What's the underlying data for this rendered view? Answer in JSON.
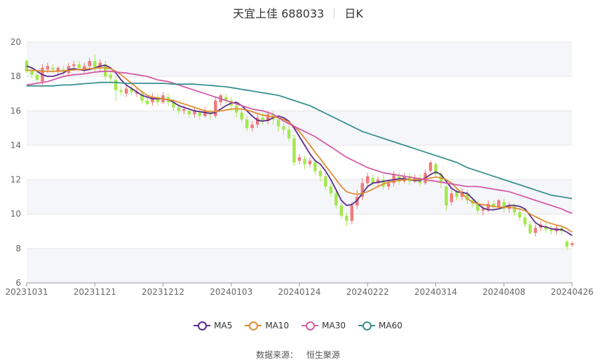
{
  "title": {
    "name": "天宜上佳 688033",
    "period": "日K"
  },
  "source": {
    "label": "数据来源：",
    "value": "恒生聚源"
  },
  "colors": {
    "up": "#ef7b7b",
    "down": "#a4e84c",
    "band": "#f5f6fa",
    "grid": "#e6e6e6"
  },
  "chart_data": {
    "type": "candlestick",
    "y_ticks": [
      "6",
      "8",
      "10",
      "12",
      "14",
      "16",
      "18",
      "20"
    ],
    "ylim": [
      6,
      20
    ],
    "x_ticks": [
      "20231031",
      "20231121",
      "20231212",
      "20240103",
      "20240124",
      "20240222",
      "20240314",
      "20240408",
      "20240426"
    ],
    "series": [
      {
        "name": "MA5",
        "color": "#5b2c8c",
        "values": [
          18.6,
          18.5,
          18.3,
          18.1,
          18.0,
          18.0,
          18.1,
          18.2,
          18.4,
          18.45,
          18.4,
          18.35,
          18.4,
          18.5,
          18.6,
          18.65,
          18.5,
          18.2,
          17.8,
          17.5,
          17.3,
          17.1,
          16.9,
          16.8,
          16.7,
          16.7,
          16.7,
          16.65,
          16.5,
          16.3,
          16.2,
          16.1,
          16.0,
          15.95,
          15.9,
          15.85,
          15.9,
          16.1,
          16.3,
          16.45,
          16.5,
          16.3,
          16.0,
          15.7,
          15.45,
          15.4,
          15.45,
          15.6,
          15.7,
          15.6,
          15.4,
          15.0,
          14.5,
          14.0,
          13.5,
          13.1,
          12.9,
          12.5,
          12.0,
          11.4,
          10.8,
          10.5,
          10.55,
          10.8,
          11.2,
          11.6,
          11.8,
          11.85,
          11.9,
          11.95,
          12.0,
          12.05,
          12.05,
          12.0,
          11.95,
          11.95,
          12.1,
          12.3,
          12.45,
          12.3,
          11.9,
          11.5,
          11.3,
          11.25,
          11.2,
          10.9,
          10.6,
          10.35,
          10.25,
          10.25,
          10.3,
          10.4,
          10.5,
          10.5,
          10.45,
          10.3,
          9.9,
          9.5,
          9.3,
          9.25,
          9.15,
          9.1,
          9.1,
          8.95,
          8.75
        ]
      },
      {
        "name": "MA10",
        "color": "#e08d33",
        "values": [
          18.35,
          18.35,
          18.33,
          18.3,
          18.3,
          18.3,
          18.3,
          18.32,
          18.35,
          18.38,
          18.4,
          18.42,
          18.45,
          18.48,
          18.5,
          18.5,
          18.45,
          18.3,
          18.1,
          17.85,
          17.6,
          17.35,
          17.1,
          16.9,
          16.8,
          16.75,
          16.7,
          16.65,
          16.6,
          16.5,
          16.4,
          16.3,
          16.2,
          16.1,
          16.0,
          15.95,
          15.95,
          16.0,
          16.05,
          16.1,
          16.12,
          16.1,
          16.05,
          15.95,
          15.85,
          15.75,
          15.7,
          15.65,
          15.6,
          15.5,
          15.35,
          15.1,
          14.8,
          14.4,
          14.0,
          13.6,
          13.2,
          12.8,
          12.4,
          12.0,
          11.6,
          11.3,
          11.2,
          11.15,
          11.2,
          11.3,
          11.45,
          11.6,
          11.75,
          11.85,
          11.9,
          11.95,
          12.0,
          12.0,
          12.0,
          12.0,
          12.05,
          12.1,
          12.15,
          12.1,
          12.0,
          11.8,
          11.5,
          11.2,
          10.9,
          10.7,
          10.6,
          10.55,
          10.5,
          10.45,
          10.4,
          10.4,
          10.4,
          10.35,
          10.3,
          10.2,
          10.0,
          9.85,
          9.7,
          9.55,
          9.45,
          9.35,
          9.3,
          9.15,
          8.95
        ]
      },
      {
        "name": "MA30",
        "color": "#d45aa8",
        "values": [
          17.5,
          17.55,
          17.6,
          17.65,
          17.7,
          17.8,
          17.9,
          18.0,
          18.05,
          18.1,
          18.12,
          18.15,
          18.2,
          18.25,
          18.28,
          18.3,
          18.3,
          18.25,
          18.22,
          18.2,
          18.15,
          18.1,
          18.05,
          18.0,
          17.9,
          17.8,
          17.75,
          17.7,
          17.6,
          17.5,
          17.4,
          17.3,
          17.2,
          17.1,
          17.0,
          16.9,
          16.8,
          16.7,
          16.6,
          16.5,
          16.4,
          16.3,
          16.2,
          16.1,
          16.05,
          16.0,
          15.9,
          15.8,
          15.6,
          15.4,
          15.25,
          15.1,
          14.95,
          14.8,
          14.65,
          14.5,
          14.3,
          14.1,
          13.9,
          13.7,
          13.5,
          13.3,
          13.15,
          13.0,
          12.85,
          12.7,
          12.6,
          12.5,
          12.4,
          12.35,
          12.3,
          12.25,
          12.2,
          12.15,
          12.1,
          12.05,
          12.0,
          11.95,
          11.9,
          11.85,
          11.8,
          11.75,
          11.7,
          11.65,
          11.6,
          11.6,
          11.6,
          11.55,
          11.5,
          11.45,
          11.4,
          11.35,
          11.3,
          11.2,
          11.1,
          11.0,
          10.9,
          10.8,
          10.7,
          10.6,
          10.5,
          10.4,
          10.3,
          10.15,
          10.05
        ]
      },
      {
        "name": "MA60",
        "color": "#3a8f8f",
        "values": [
          17.45,
          17.45,
          17.45,
          17.45,
          17.45,
          17.45,
          17.48,
          17.5,
          17.5,
          17.52,
          17.55,
          17.58,
          17.6,
          17.62,
          17.65,
          17.65,
          17.65,
          17.65,
          17.62,
          17.6,
          17.6,
          17.6,
          17.6,
          17.6,
          17.6,
          17.6,
          17.6,
          17.58,
          17.55,
          17.55,
          17.55,
          17.55,
          17.55,
          17.52,
          17.5,
          17.48,
          17.45,
          17.42,
          17.4,
          17.35,
          17.3,
          17.25,
          17.2,
          17.15,
          17.1,
          17.05,
          17.0,
          16.95,
          16.9,
          16.8,
          16.7,
          16.6,
          16.5,
          16.4,
          16.3,
          16.15,
          16.0,
          15.85,
          15.7,
          15.55,
          15.4,
          15.25,
          15.1,
          14.95,
          14.8,
          14.7,
          14.6,
          14.5,
          14.4,
          14.3,
          14.2,
          14.1,
          14.0,
          13.9,
          13.8,
          13.7,
          13.6,
          13.5,
          13.4,
          13.3,
          13.2,
          13.1,
          13.0,
          12.85,
          12.7,
          12.6,
          12.5,
          12.4,
          12.3,
          12.2,
          12.1,
          12.0,
          11.9,
          11.8,
          11.7,
          11.6,
          11.5,
          11.4,
          11.3,
          11.2,
          11.1,
          11.05,
          11.0,
          10.95,
          10.9
        ]
      }
    ],
    "candles": [
      [
        18.9,
        18.3,
        19.0,
        18.2
      ],
      [
        18.3,
        18.1,
        18.5,
        17.9
      ],
      [
        18.1,
        17.8,
        18.3,
        17.6
      ],
      [
        17.7,
        18.5,
        18.7,
        17.5
      ],
      [
        18.4,
        18.6,
        18.8,
        18.2
      ],
      [
        18.5,
        18.4,
        18.7,
        18.2
      ],
      [
        18.3,
        18.5,
        18.6,
        18.1
      ],
      [
        18.4,
        18.3,
        18.6,
        18.1
      ],
      [
        18.2,
        18.6,
        18.8,
        18.0
      ],
      [
        18.6,
        18.7,
        18.9,
        18.4
      ],
      [
        18.7,
        18.5,
        18.9,
        18.3
      ],
      [
        18.4,
        18.6,
        18.8,
        18.2
      ],
      [
        18.6,
        18.9,
        19.1,
        18.4
      ],
      [
        18.9,
        18.4,
        19.3,
        18.2
      ],
      [
        18.5,
        18.8,
        19.0,
        18.3
      ],
      [
        18.7,
        18.0,
        18.9,
        17.8
      ],
      [
        18.1,
        17.9,
        18.3,
        17.6
      ],
      [
        17.8,
        17.2,
        18.0,
        16.6
      ],
      [
        17.2,
        17.1,
        17.4,
        16.9
      ],
      [
        17.0,
        17.3,
        17.5,
        16.8
      ],
      [
        17.3,
        17.1,
        17.5,
        16.9
      ],
      [
        17.0,
        17.1,
        17.3,
        16.8
      ],
      [
        17.0,
        16.6,
        17.2,
        16.4
      ],
      [
        16.6,
        16.4,
        16.8,
        16.3
      ],
      [
        16.5,
        16.8,
        17.0,
        16.3
      ],
      [
        16.8,
        16.5,
        17.0,
        16.3
      ],
      [
        16.5,
        16.9,
        17.1,
        16.4
      ],
      [
        16.8,
        16.5,
        17.0,
        16.3
      ],
      [
        16.5,
        16.2,
        16.7,
        16.0
      ],
      [
        16.2,
        16.0,
        16.4,
        15.8
      ],
      [
        16.0,
        16.1,
        16.3,
        15.8
      ],
      [
        16.0,
        15.8,
        16.2,
        15.6
      ],
      [
        15.8,
        16.0,
        16.2,
        15.6
      ],
      [
        15.9,
        15.7,
        16.1,
        15.5
      ],
      [
        15.7,
        16.0,
        16.2,
        15.6
      ],
      [
        15.9,
        15.8,
        16.1,
        15.5
      ],
      [
        15.7,
        16.6,
        16.8,
        15.6
      ],
      [
        16.5,
        16.9,
        17.0,
        16.3
      ],
      [
        16.8,
        16.6,
        17.0,
        16.4
      ],
      [
        16.6,
        16.3,
        16.8,
        16.0
      ],
      [
        16.3,
        15.9,
        16.5,
        15.6
      ],
      [
        15.9,
        15.5,
        16.1,
        15.3
      ],
      [
        15.5,
        15.0,
        15.7,
        14.8
      ],
      [
        15.0,
        15.2,
        15.4,
        14.8
      ],
      [
        15.2,
        15.6,
        15.8,
        15.0
      ],
      [
        15.6,
        15.4,
        15.9,
        15.2
      ],
      [
        15.4,
        15.8,
        16.0,
        15.2
      ],
      [
        15.8,
        15.5,
        16.0,
        15.2
      ],
      [
        15.5,
        15.1,
        15.7,
        14.8
      ],
      [
        15.1,
        14.9,
        15.3,
        14.6
      ],
      [
        14.9,
        14.4,
        15.1,
        14.2
      ],
      [
        14.4,
        13.0,
        14.6,
        12.8
      ],
      [
        13.1,
        13.3,
        13.5,
        12.9
      ],
      [
        13.2,
        12.9,
        13.4,
        12.6
      ],
      [
        12.9,
        13.1,
        13.3,
        12.7
      ],
      [
        13.0,
        12.5,
        13.2,
        12.3
      ],
      [
        12.5,
        12.2,
        12.7,
        11.9
      ],
      [
        12.2,
        11.6,
        12.4,
        11.4
      ],
      [
        11.6,
        11.2,
        11.8,
        11.0
      ],
      [
        11.2,
        10.5,
        11.4,
        10.3
      ],
      [
        10.5,
        9.9,
        10.7,
        9.7
      ],
      [
        9.9,
        9.6,
        10.1,
        9.3
      ],
      [
        9.6,
        10.5,
        10.7,
        9.4
      ],
      [
        10.5,
        11.0,
        11.4,
        10.3
      ],
      [
        11.0,
        11.8,
        12.1,
        10.8
      ],
      [
        11.8,
        12.2,
        12.4,
        11.6
      ],
      [
        12.1,
        11.8,
        12.3,
        11.6
      ],
      [
        11.8,
        12.0,
        12.2,
        11.6
      ],
      [
        12.0,
        11.6,
        12.3,
        11.4
      ],
      [
        11.6,
        11.8,
        12.0,
        11.4
      ],
      [
        11.8,
        12.3,
        12.5,
        11.6
      ],
      [
        12.2,
        11.9,
        12.4,
        11.7
      ],
      [
        11.9,
        12.2,
        12.4,
        11.8
      ],
      [
        12.2,
        11.9,
        12.4,
        11.7
      ],
      [
        11.9,
        12.1,
        12.3,
        11.8
      ],
      [
        12.1,
        11.8,
        12.3,
        11.6
      ],
      [
        11.8,
        12.4,
        12.6,
        11.7
      ],
      [
        12.5,
        13.0,
        13.1,
        12.4
      ],
      [
        12.9,
        12.3,
        13.0,
        12.1
      ],
      [
        12.3,
        11.8,
        12.5,
        11.5
      ],
      [
        11.6,
        10.5,
        11.7,
        10.2
      ],
      [
        10.7,
        11.2,
        11.4,
        10.5
      ],
      [
        11.3,
        11.0,
        11.5,
        10.8
      ],
      [
        11.0,
        11.3,
        11.5,
        10.8
      ],
      [
        11.2,
        10.8,
        11.4,
        10.6
      ],
      [
        10.8,
        10.6,
        11.0,
        10.4
      ],
      [
        10.6,
        10.2,
        10.8,
        10.0
      ],
      [
        10.2,
        10.3,
        10.5,
        9.9
      ],
      [
        10.3,
        10.6,
        10.8,
        10.1
      ],
      [
        10.6,
        10.4,
        10.8,
        10.2
      ],
      [
        10.4,
        10.8,
        10.9,
        10.3
      ],
      [
        10.7,
        10.3,
        10.9,
        10.1
      ],
      [
        10.3,
        10.5,
        10.7,
        10.1
      ],
      [
        10.5,
        10.1,
        10.6,
        9.9
      ],
      [
        10.1,
        9.8,
        10.3,
        9.6
      ],
      [
        9.8,
        9.4,
        10.0,
        9.2
      ],
      [
        9.4,
        8.9,
        9.6,
        8.8
      ],
      [
        8.9,
        9.2,
        9.4,
        8.7
      ],
      [
        9.2,
        9.4,
        9.6,
        9.0
      ],
      [
        9.3,
        9.1,
        9.5,
        8.9
      ],
      [
        9.1,
        9.0,
        9.3,
        8.8
      ],
      [
        9.0,
        9.2,
        9.4,
        8.8
      ],
      [
        9.2,
        9.0,
        9.3,
        8.8
      ],
      [
        8.4,
        8.1,
        8.5,
        7.9
      ],
      [
        8.2,
        8.3,
        8.4,
        8.1
      ]
    ]
  }
}
